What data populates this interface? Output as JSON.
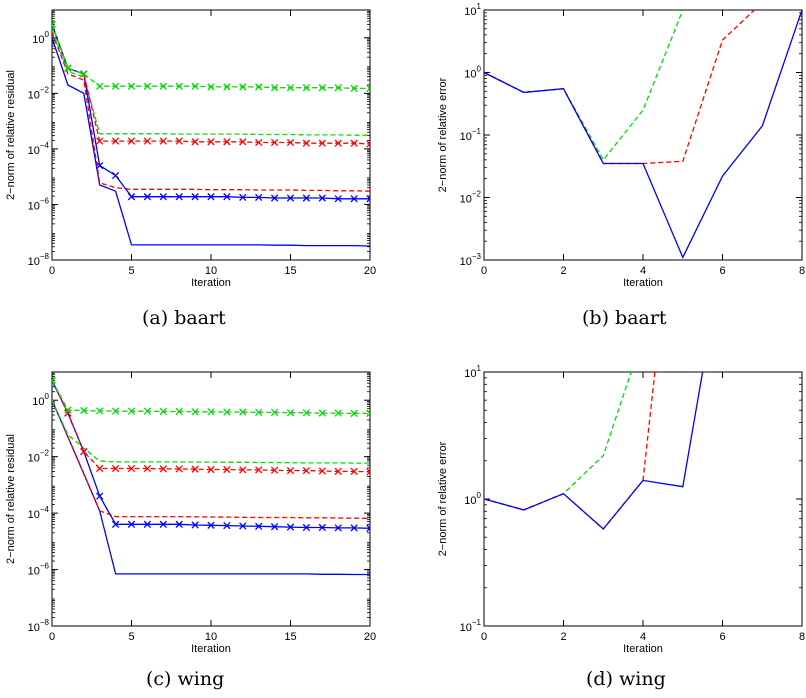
{
  "captions": [
    "(a) baart",
    "(b) baart",
    "(c) wing",
    "(d) wing"
  ],
  "colors": {
    "blue": "#0000ff",
    "red": "#ff0000",
    "green": "#00dd00",
    "axis": "#000000"
  },
  "chart_data": [
    {
      "type": "line",
      "caption": "(a) baart",
      "xlabel": "Iteration",
      "ylabel": "2−norm of relative residual",
      "yscale": "log",
      "xlim": [
        0,
        20
      ],
      "ylim": [
        1e-08,
        10
      ],
      "xticks": [
        0,
        5,
        10,
        15,
        20
      ],
      "yticks": [
        1e-08,
        1e-06,
        0.0001,
        0.01,
        1
      ],
      "ytick_labels": [
        [
          "10",
          "−8"
        ],
        [
          "10",
          "−6"
        ],
        [
          "10",
          "−4"
        ],
        [
          "10",
          "−2"
        ],
        [
          "10",
          "0"
        ]
      ],
      "grid": false,
      "series": [
        {
          "color": "blue",
          "style": "solid",
          "marker": "none",
          "x": [
            0,
            1,
            2,
            3,
            4,
            5,
            6,
            7,
            8,
            9,
            10,
            11,
            12,
            13,
            14,
            15,
            16,
            17,
            18,
            19,
            20
          ],
          "y": [
            1.0,
            0.02,
            0.01,
            5e-06,
            3e-06,
            3.5e-08,
            3.5e-08,
            3.5e-08,
            3.5e-08,
            3.5e-08,
            3.5e-08,
            3.5e-08,
            3.5e-08,
            3.5e-08,
            3.4e-08,
            3.4e-08,
            3.3e-08,
            3.3e-08,
            3.3e-08,
            3.3e-08,
            3.2e-08
          ]
        },
        {
          "color": "red",
          "style": "dashed",
          "marker": "none",
          "x": [
            0,
            1,
            2,
            3,
            4,
            5,
            6,
            7,
            8,
            9,
            10,
            11,
            12,
            13,
            14,
            15,
            16,
            17,
            18,
            19,
            20
          ],
          "y": [
            1.6,
            0.05,
            0.03,
            6e-06,
            4e-06,
            3.5e-06,
            3.5e-06,
            3.5e-06,
            3.5e-06,
            3.5e-06,
            3.4e-06,
            3.4e-06,
            3.4e-06,
            3.3e-06,
            3.3e-06,
            3.3e-06,
            3.2e-06,
            3.2e-06,
            3.1e-06,
            3.1e-06,
            3e-06
          ]
        },
        {
          "color": "green",
          "style": "dashed",
          "marker": "none",
          "x": [
            0,
            1,
            2,
            3,
            4,
            5,
            6,
            7,
            8,
            9,
            10,
            11,
            12,
            13,
            14,
            15,
            16,
            17,
            18,
            19,
            20
          ],
          "y": [
            2.0,
            0.06,
            0.04,
            0.00035,
            0.00035,
            0.00035,
            0.00035,
            0.00035,
            0.00034,
            0.00034,
            0.00034,
            0.00034,
            0.00034,
            0.00033,
            0.00033,
            0.00033,
            0.00032,
            0.00032,
            0.00032,
            0.00031,
            0.00031
          ]
        },
        {
          "color": "blue",
          "style": "solid",
          "marker": "x",
          "x": [
            0,
            1,
            2,
            3,
            4,
            5,
            6,
            7,
            8,
            9,
            10,
            11,
            12,
            13,
            14,
            15,
            16,
            17,
            18,
            19,
            20
          ],
          "y": [
            3.0,
            0.08,
            0.05,
            2.5e-05,
            1.1e-05,
            1.9e-06,
            1.9e-06,
            1.9e-06,
            1.9e-06,
            1.9e-06,
            1.9e-06,
            1.9e-06,
            1.8e-06,
            1.8e-06,
            1.7e-06,
            1.7e-06,
            1.7e-06,
            1.7e-06,
            1.6e-06,
            1.6e-06,
            1.6e-06
          ]
        },
        {
          "color": "red",
          "style": "dashed",
          "marker": "x",
          "x": [
            0,
            1,
            2,
            3,
            4,
            5,
            6,
            7,
            8,
            9,
            10,
            11,
            12,
            13,
            14,
            15,
            16,
            17,
            18,
            19,
            20
          ],
          "y": [
            3.0,
            0.08,
            0.05,
            0.00019,
            0.00019,
            0.00019,
            0.00019,
            0.00019,
            0.00019,
            0.00018,
            0.00018,
            0.00018,
            0.00018,
            0.00017,
            0.00017,
            0.00017,
            0.00016,
            0.00016,
            0.00016,
            0.00016,
            0.00015
          ]
        },
        {
          "color": "green",
          "style": "dashed",
          "marker": "x",
          "x": [
            0,
            1,
            2,
            3,
            4,
            5,
            6,
            7,
            8,
            9,
            10,
            11,
            12,
            13,
            14,
            15,
            16,
            17,
            18,
            19,
            20
          ],
          "y": [
            3.0,
            0.08,
            0.05,
            0.018,
            0.018,
            0.018,
            0.018,
            0.018,
            0.018,
            0.018,
            0.017,
            0.017,
            0.017,
            0.017,
            0.016,
            0.016,
            0.016,
            0.016,
            0.016,
            0.015,
            0.015
          ]
        }
      ]
    },
    {
      "type": "line",
      "caption": "(b) baart",
      "xlabel": "Iteration",
      "ylabel": "2−norm of relative error",
      "yscale": "log",
      "xlim": [
        0,
        8
      ],
      "ylim": [
        0.001,
        10
      ],
      "xticks": [
        0,
        2,
        4,
        6,
        8
      ],
      "yticks": [
        0.001,
        0.01,
        0.1,
        1,
        10
      ],
      "ytick_labels": [
        [
          "10",
          "−3"
        ],
        [
          "10",
          "−2"
        ],
        [
          "10",
          "−1"
        ],
        [
          "10",
          "0"
        ],
        [
          "10",
          "1"
        ]
      ],
      "grid": false,
      "series": [
        {
          "color": "green",
          "style": "dashed",
          "marker": "none",
          "x": [
            0,
            1,
            2,
            3,
            4,
            5
          ],
          "y": [
            1.0,
            0.48,
            0.55,
            0.04,
            0.25,
            10
          ]
        },
        {
          "color": "red",
          "style": "dashed",
          "marker": "none",
          "x": [
            0,
            1,
            2,
            3,
            4,
            5,
            6,
            6.8
          ],
          "y": [
            1.0,
            0.48,
            0.55,
            0.035,
            0.035,
            0.038,
            3.3,
            10
          ]
        },
        {
          "color": "blue",
          "style": "solid",
          "marker": "none",
          "x": [
            0,
            1,
            2,
            3,
            4,
            5,
            6,
            7,
            8
          ],
          "y": [
            1.0,
            0.48,
            0.55,
            0.035,
            0.035,
            0.0011,
            0.022,
            0.14,
            10
          ]
        }
      ]
    },
    {
      "type": "line",
      "caption": "(c) wing",
      "xlabel": "Iteration",
      "ylabel": "2−norm of relative residual",
      "yscale": "log",
      "xlim": [
        0,
        20
      ],
      "ylim": [
        1e-08,
        10
      ],
      "xticks": [
        0,
        5,
        10,
        15,
        20
      ],
      "yticks": [
        1e-08,
        1e-06,
        0.0001,
        0.01,
        1
      ],
      "ytick_labels": [
        [
          "10",
          "−8"
        ],
        [
          "10",
          "−6"
        ],
        [
          "10",
          "−4"
        ],
        [
          "10",
          "−2"
        ],
        [
          "10",
          "0"
        ]
      ],
      "grid": false,
      "series": [
        {
          "color": "blue",
          "style": "solid",
          "marker": "none",
          "x": [
            0,
            1,
            2,
            3,
            4,
            5,
            6,
            7,
            8,
            9,
            10,
            11,
            12,
            13,
            14,
            15,
            16,
            17,
            18,
            19,
            20
          ],
          "y": [
            1.0,
            0.05,
            0.0025,
            0.00012,
            7e-07,
            7e-07,
            7e-07,
            7e-07,
            7e-07,
            7e-07,
            7e-07,
            7e-07,
            7e-07,
            7e-07,
            7e-07,
            7e-07,
            7e-07,
            6.8e-07,
            6.8e-07,
            6.7e-07,
            6.7e-07
          ]
        },
        {
          "color": "red",
          "style": "dashed",
          "marker": "none",
          "x": [
            0,
            1,
            2,
            3,
            4,
            5,
            6,
            7,
            8,
            9,
            10,
            11,
            12,
            13,
            14,
            15,
            16,
            17,
            18,
            19,
            20
          ],
          "y": [
            1.0,
            0.05,
            0.0025,
            0.00012,
            7.5e-05,
            7.5e-05,
            7.5e-05,
            7.5e-05,
            7.5e-05,
            7.4e-05,
            7.3e-05,
            7.2e-05,
            7.1e-05,
            7e-05,
            7e-05,
            7e-05,
            6.8e-05,
            6.8e-05,
            6.7e-05,
            6.6e-05,
            6.5e-05
          ]
        },
        {
          "color": "green",
          "style": "dashed",
          "marker": "none",
          "x": [
            0,
            1,
            2,
            3,
            4,
            5,
            6,
            7,
            8,
            9,
            10,
            11,
            12,
            13,
            14,
            15,
            16,
            17,
            18,
            19,
            20
          ],
          "y": [
            1.0,
            0.06,
            0.02,
            0.007,
            0.0065,
            0.0065,
            0.0065,
            0.0065,
            0.0065,
            0.0064,
            0.0064,
            0.0063,
            0.0063,
            0.0062,
            0.0062,
            0.0061,
            0.006,
            0.006,
            0.006,
            0.0059,
            0.0059
          ]
        },
        {
          "color": "blue",
          "style": "solid",
          "marker": "x",
          "x": [
            0,
            1,
            2,
            3,
            4,
            5,
            6,
            7,
            8,
            9,
            10,
            11,
            12,
            13,
            14,
            15,
            16,
            17,
            18,
            19,
            20
          ],
          "y": [
            5.0,
            0.35,
            0.015,
            0.0004,
            4e-05,
            4e-05,
            4e-05,
            4e-05,
            4e-05,
            3.8e-05,
            3.7e-05,
            3.6e-05,
            3.5e-05,
            3.4e-05,
            3.3e-05,
            3.2e-05,
            3.1e-05,
            3.1e-05,
            3e-05,
            3e-05,
            2.9e-05
          ]
        },
        {
          "color": "red",
          "style": "dashed",
          "marker": "x",
          "x": [
            0,
            1,
            2,
            3,
            4,
            5,
            6,
            7,
            8,
            9,
            10,
            11,
            12,
            13,
            14,
            15,
            16,
            17,
            18,
            19,
            20
          ],
          "y": [
            5.0,
            0.35,
            0.015,
            0.0038,
            0.0038,
            0.0038,
            0.0038,
            0.0037,
            0.0037,
            0.0036,
            0.0035,
            0.0035,
            0.0034,
            0.0034,
            0.0033,
            0.0032,
            0.0032,
            0.0031,
            0.003,
            0.003,
            0.0029
          ]
        },
        {
          "color": "green",
          "style": "dashed",
          "marker": "x",
          "x": [
            0,
            1,
            2,
            3,
            4,
            5,
            6,
            7,
            8,
            9,
            10,
            11,
            12,
            13,
            14,
            15,
            16,
            17,
            18,
            19,
            20
          ],
          "y": [
            5.0,
            0.45,
            0.43,
            0.42,
            0.41,
            0.41,
            0.41,
            0.4,
            0.4,
            0.39,
            0.39,
            0.38,
            0.38,
            0.37,
            0.37,
            0.36,
            0.36,
            0.35,
            0.35,
            0.34,
            0.34
          ]
        }
      ]
    },
    {
      "type": "line",
      "caption": "(d) wing",
      "xlabel": "Iteration",
      "ylabel": "2−norm of relative error",
      "yscale": "log",
      "xlim": [
        0,
        8
      ],
      "ylim": [
        0.1,
        10
      ],
      "xticks": [
        0,
        2,
        4,
        6,
        8
      ],
      "yticks": [
        0.1,
        1,
        10
      ],
      "ytick_labels": [
        [
          "10",
          "−1"
        ],
        [
          "10",
          "0"
        ],
        [
          "10",
          "1"
        ]
      ],
      "grid": false,
      "series": [
        {
          "color": "green",
          "style": "dashed",
          "marker": "none",
          "x": [
            0,
            1,
            2,
            3,
            3.7
          ],
          "y": [
            1.0,
            0.82,
            1.1,
            2.2,
            10
          ]
        },
        {
          "color": "red",
          "style": "dashed",
          "marker": "none",
          "x": [
            0,
            1,
            2,
            3,
            4,
            4.3
          ],
          "y": [
            1.0,
            0.82,
            1.1,
            0.58,
            1.4,
            10
          ]
        },
        {
          "color": "blue",
          "style": "solid",
          "marker": "none",
          "x": [
            0,
            1,
            2,
            3,
            4,
            5,
            5.5
          ],
          "y": [
            1.0,
            0.82,
            1.1,
            0.58,
            1.4,
            1.25,
            10
          ]
        }
      ]
    }
  ]
}
